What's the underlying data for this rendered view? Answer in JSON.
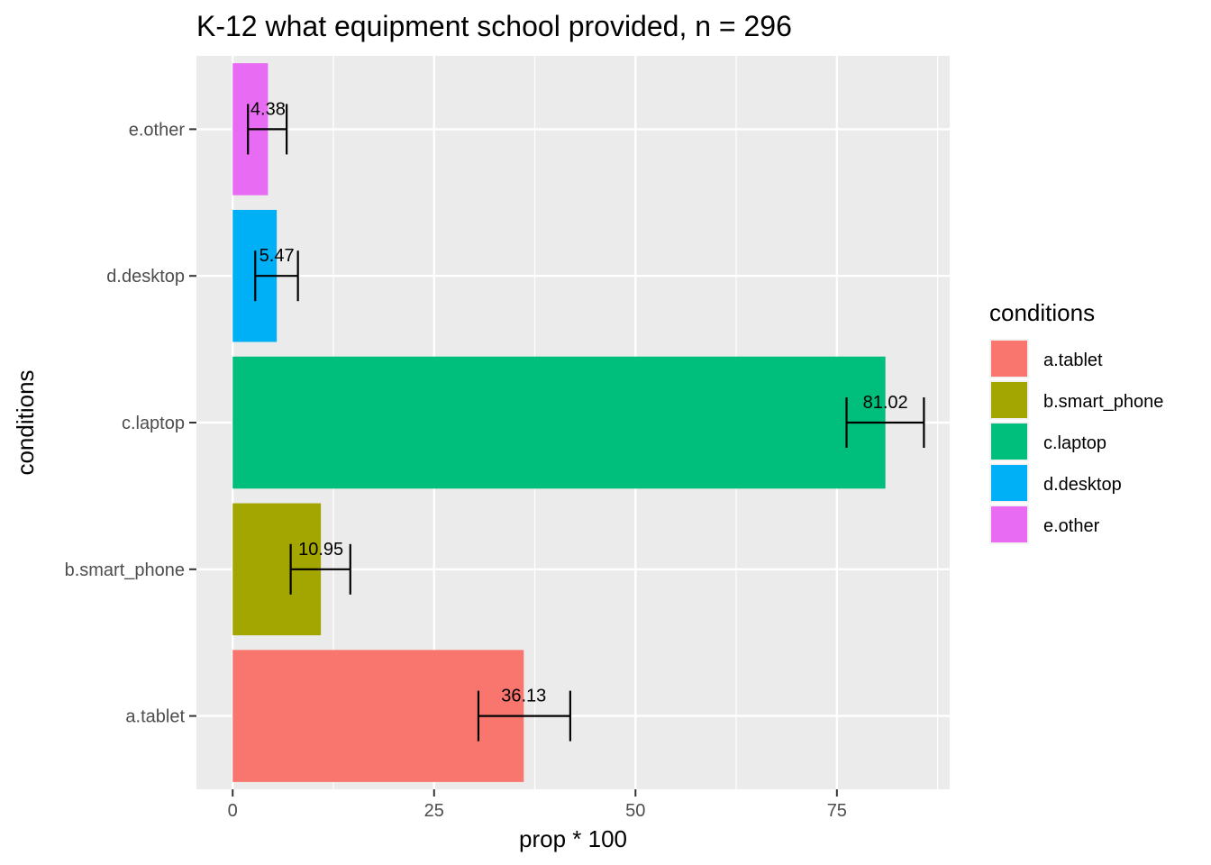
{
  "chart_data": {
    "type": "bar",
    "orientation": "horizontal",
    "title": "K-12 what equipment school provided, n = 296",
    "xlabel": "prop * 100",
    "ylabel": "conditions",
    "categories": [
      "a.tablet",
      "b.smart_phone",
      "c.laptop",
      "d.desktop",
      "e.other"
    ],
    "values": [
      36.13,
      10.95,
      81.02,
      5.47,
      4.38
    ],
    "value_labels": [
      "36.13",
      "10.95",
      "81.02",
      "5.47",
      "4.38"
    ],
    "error_low": [
      30.5,
      7.2,
      76.2,
      2.8,
      1.9
    ],
    "error_high": [
      41.9,
      14.6,
      85.8,
      8.1,
      6.7
    ],
    "colors": [
      "#F8766D",
      "#A3A500",
      "#00BF7D",
      "#00B0F6",
      "#E76BF3"
    ],
    "xlim": [
      -4.5,
      89
    ],
    "xticks": [
      0,
      25,
      50,
      75
    ],
    "xtick_labels": [
      "0",
      "25",
      "50",
      "75"
    ],
    "grid": true,
    "legend": {
      "title": "conditions",
      "position": "right",
      "entries": [
        "a.tablet",
        "b.smart_phone",
        "c.laptop",
        "d.desktop",
        "e.other"
      ]
    }
  }
}
